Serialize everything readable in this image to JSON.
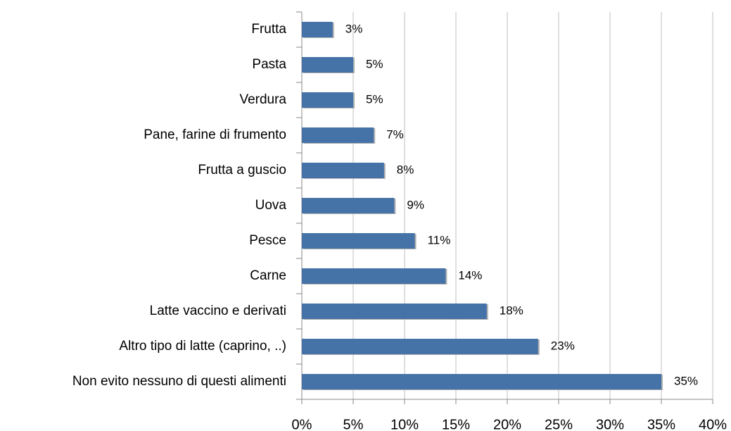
{
  "chart_data": {
    "type": "bar",
    "orientation": "horizontal",
    "categories": [
      "Frutta",
      "Pasta",
      "Verdura",
      "Pane, farine di frumento",
      "Frutta a guscio",
      "Uova",
      "Pesce",
      "Carne",
      "Latte vaccino e derivati",
      "Altro tipo di latte (caprino, ..)",
      "Non evito nessuno di questi alimenti"
    ],
    "values": [
      3,
      5,
      5,
      7,
      8,
      9,
      11,
      14,
      18,
      23,
      35
    ],
    "value_labels": [
      "3%",
      "5%",
      "5%",
      "7%",
      "8%",
      "9%",
      "11%",
      "14%",
      "18%",
      "23%",
      "35%"
    ],
    "color": "#4572a7",
    "xlim": [
      0,
      40
    ],
    "xticks": [
      {
        "value": 0,
        "label": "0%"
      },
      {
        "value": 5,
        "label": "5%"
      },
      {
        "value": 10,
        "label": "10%"
      },
      {
        "value": 15,
        "label": "15%"
      },
      {
        "value": 20,
        "label": "20%"
      },
      {
        "value": 25,
        "label": "25%"
      },
      {
        "value": 30,
        "label": "30%"
      },
      {
        "value": 35,
        "label": "35%"
      },
      {
        "value": 40,
        "label": "40%"
      }
    ],
    "grid": true
  }
}
